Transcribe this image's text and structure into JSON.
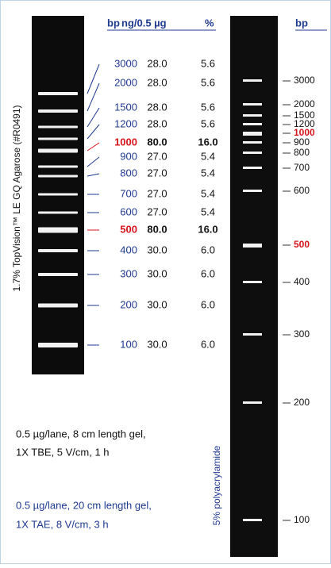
{
  "left_table": {
    "header": {
      "bp": "bp",
      "ng": "ng/0.5 µg",
      "pct": "%"
    },
    "rows": [
      [
        "3000",
        "28.0",
        "5.6"
      ],
      [
        "2000",
        "28.0",
        "5.6"
      ],
      [
        "1500",
        "28.0",
        "5.6"
      ],
      [
        "1200",
        "28.0",
        "5.6"
      ],
      [
        "1000",
        "80.0",
        "16.0"
      ],
      [
        "900",
        "27.0",
        "5.4"
      ],
      [
        "800",
        "27.0",
        "5.4"
      ],
      [
        "700",
        "27.0",
        "5.4"
      ],
      [
        "600",
        "27.0",
        "5.4"
      ],
      [
        "500",
        "80.0",
        "16.0"
      ],
      [
        "400",
        "30.0",
        "6.0"
      ],
      [
        "300",
        "30.0",
        "6.0"
      ],
      [
        "200",
        "30.0",
        "6.0"
      ],
      [
        "100",
        "30.0",
        "6.0"
      ]
    ]
  },
  "left_gel_label": "1.7% TopVision™ LE GQ Agarose (#R0491)",
  "captions": [
    "0.5 µg/lane, 8 cm length gel,",
    "1X TBE, 5 V/cm, 1 h",
    "0.5 µg/lane, 20 cm length gel,",
    "1X TAE, 8 V/cm, 3 h"
  ],
  "right_gel_label": "5% polyacrylamide",
  "right_labels": {
    "header": "bp",
    "values": [
      "3000",
      "2000",
      "1500",
      "1200",
      "1000",
      "900",
      "800",
      "700",
      "600",
      "500",
      "400",
      "300",
      "200",
      "100"
    ]
  }
}
